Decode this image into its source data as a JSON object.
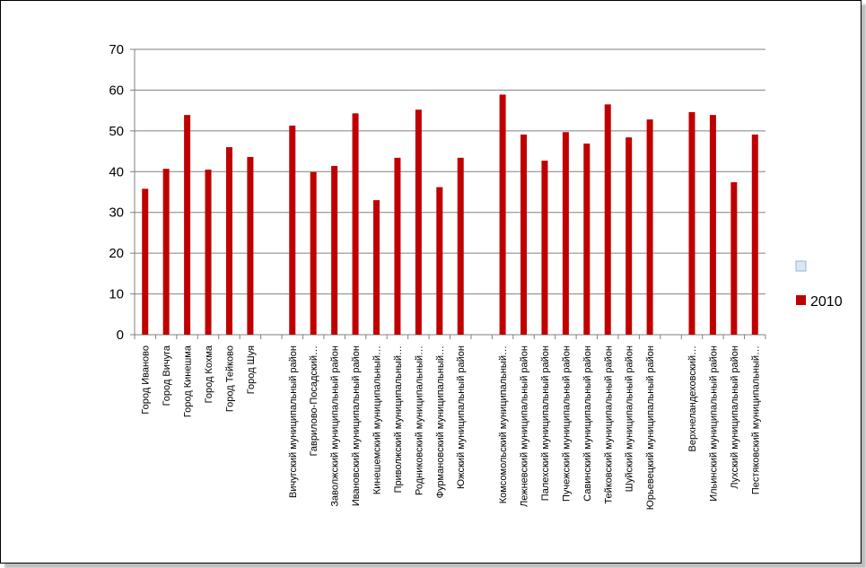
{
  "chart_data": {
    "type": "bar",
    "categories": [
      "Город Иваново",
      "Город Вичуга",
      "Город Кинешма",
      "Город Кохма",
      "Город Тейково",
      "Город Шуя",
      "",
      "Вичугский муниципальный район",
      "Гаврилово-Посадский…",
      "Заволжский муниципальный район",
      "Ивановский муниципальный район",
      "Кинешемский муниципальный…",
      "Приволжский муниципальный…",
      "Родниковский муниципальный…",
      "Фурмановский муниципальный…",
      "Южский муниципальный район",
      "",
      "Комсомольский муниципальный…",
      "Лежневский муниципальный район",
      "Палехский муниципальный район",
      "Пучежский муниципальный район",
      "Савинский муниципальный район",
      "Тейковский муниципальный район",
      "Шуйский муниципальный район",
      "Юрьевецкий муниципальный район",
      "",
      "Верхнеландеховский…",
      "Ильинский муниципальный район",
      "Лухский муниципальный район",
      "Пестяковский муниципальный…"
    ],
    "series": [
      {
        "name": "",
        "values": [
          null,
          null,
          null,
          null,
          null,
          null,
          null,
          null,
          null,
          null,
          null,
          null,
          null,
          null,
          null,
          null,
          null,
          null,
          null,
          null,
          null,
          null,
          null,
          null,
          null,
          null,
          null,
          null,
          null,
          null
        ]
      },
      {
        "name": "2010",
        "values": [
          35.8,
          40.7,
          53.9,
          40.5,
          46.0,
          43.6,
          null,
          51.3,
          39.9,
          41.4,
          54.3,
          33.0,
          43.4,
          55.2,
          36.2,
          43.4,
          null,
          58.9,
          49.1,
          42.7,
          49.7,
          46.9,
          56.5,
          48.4,
          52.8,
          null,
          54.6,
          53.9,
          37.4,
          49.1
        ]
      }
    ],
    "ylim": [
      0,
      70
    ],
    "yticks": [
      0,
      10,
      20,
      30,
      40,
      50,
      60,
      70
    ],
    "grid": true,
    "legend": "right",
    "colors": {
      "series_2010": "#c00000",
      "series_blank": "#dce6f2",
      "grid": "#808080"
    }
  }
}
